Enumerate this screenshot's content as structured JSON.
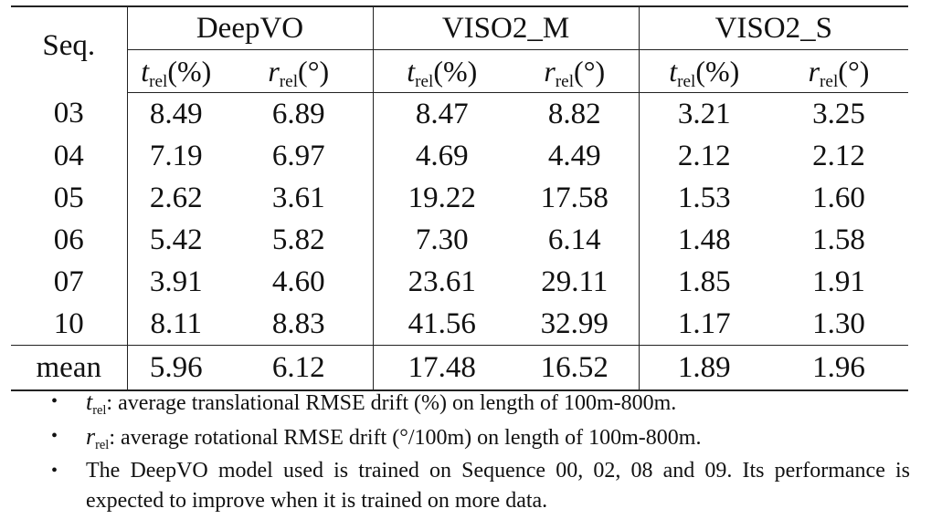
{
  "table": {
    "seq_header": "Seq.",
    "groups": [
      "DeepVO",
      "VISO2_M",
      "VISO2_S"
    ],
    "sub_headers": [
      {
        "symbol": "t",
        "subscript": "rel",
        "unit": "(%)"
      },
      {
        "symbol": "r",
        "subscript": "rel",
        "unit": "(°)"
      },
      {
        "symbol": "t",
        "subscript": "rel",
        "unit": "(%)"
      },
      {
        "symbol": "r",
        "subscript": "rel",
        "unit": "(°)"
      },
      {
        "symbol": "t",
        "subscript": "rel",
        "unit": "(%)"
      },
      {
        "symbol": "r",
        "subscript": "rel",
        "unit": "(°)"
      }
    ],
    "rows": [
      {
        "seq": "03",
        "values": [
          "8.49",
          "6.89",
          "8.47",
          "8.82",
          "3.21",
          "3.25"
        ]
      },
      {
        "seq": "04",
        "values": [
          "7.19",
          "6.97",
          "4.69",
          "4.49",
          "2.12",
          "2.12"
        ]
      },
      {
        "seq": "05",
        "values": [
          "2.62",
          "3.61",
          "19.22",
          "17.58",
          "1.53",
          "1.60"
        ]
      },
      {
        "seq": "06",
        "values": [
          "5.42",
          "5.82",
          "7.30",
          "6.14",
          "1.48",
          "1.58"
        ]
      },
      {
        "seq": "07",
        "values": [
          "3.91",
          "4.60",
          "23.61",
          "29.11",
          "1.85",
          "1.91"
        ]
      },
      {
        "seq": "10",
        "values": [
          "8.11",
          "8.83",
          "41.56",
          "32.99",
          "1.17",
          "1.30"
        ]
      }
    ],
    "mean": {
      "seq": "mean",
      "values": [
        "5.96",
        "6.12",
        "17.48",
        "16.52",
        "1.89",
        "1.96"
      ]
    }
  },
  "notes": [
    {
      "symbol": "t",
      "subscript": "rel",
      "text": ": average translational RMSE drift (%) on length of 100m-800m."
    },
    {
      "symbol": "r",
      "subscript": "rel",
      "text": ": average rotational RMSE drift (°/100m) on length of 100m-800m."
    },
    {
      "symbol": "",
      "subscript": "",
      "text": "The DeepVO model used is trained on Sequence 00, 02, 08 and 09. Its performance is expected to improve when it is trained on more data."
    }
  ],
  "bullet_glyph": "•"
}
